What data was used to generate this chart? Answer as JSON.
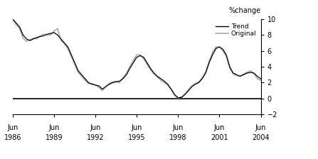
{
  "title": "%change",
  "xlim_start": 1986.417,
  "xlim_end": 2004.417,
  "ylim": [
    -2,
    10
  ],
  "yticks": [
    -2,
    0,
    2,
    4,
    6,
    8,
    10
  ],
  "xtick_positions": [
    1986.417,
    1989.417,
    1992.417,
    1995.417,
    1998.417,
    2001.417,
    2004.417
  ],
  "xtick_labels_top": [
    "Jun",
    "Jun",
    "Jun",
    "Jun",
    "Jun",
    "Jun",
    "Jun"
  ],
  "xtick_labels_bot": [
    "1986",
    "1989",
    "1992",
    "1995",
    "1998",
    "2001",
    "2004"
  ],
  "trend_color": "#000000",
  "original_color": "#aaaaaa",
  "zero_line_color": "#000000",
  "legend_entries": [
    "Trend",
    "Original"
  ],
  "background_color": "#ffffff",
  "trend_data": [
    [
      1986.417,
      10.0
    ],
    [
      1986.67,
      9.5
    ],
    [
      1986.917,
      9.0
    ],
    [
      1987.167,
      8.0
    ],
    [
      1987.417,
      7.5
    ],
    [
      1987.67,
      7.3
    ],
    [
      1987.917,
      7.5
    ],
    [
      1988.167,
      7.7
    ],
    [
      1988.417,
      7.8
    ],
    [
      1988.67,
      7.9
    ],
    [
      1988.917,
      8.1
    ],
    [
      1989.167,
      8.2
    ],
    [
      1989.417,
      8.3
    ],
    [
      1989.67,
      8.0
    ],
    [
      1989.917,
      7.5
    ],
    [
      1990.167,
      7.0
    ],
    [
      1990.417,
      6.5
    ],
    [
      1990.67,
      5.5
    ],
    [
      1990.917,
      4.5
    ],
    [
      1991.167,
      3.5
    ],
    [
      1991.417,
      3.0
    ],
    [
      1991.67,
      2.5
    ],
    [
      1991.917,
      2.0
    ],
    [
      1992.167,
      1.8
    ],
    [
      1992.417,
      1.7
    ],
    [
      1992.67,
      1.6
    ],
    [
      1992.917,
      1.2
    ],
    [
      1993.167,
      1.5
    ],
    [
      1993.417,
      1.8
    ],
    [
      1993.67,
      2.0
    ],
    [
      1993.917,
      2.1
    ],
    [
      1994.167,
      2.2
    ],
    [
      1994.417,
      2.5
    ],
    [
      1994.67,
      3.0
    ],
    [
      1994.917,
      3.8
    ],
    [
      1995.167,
      4.5
    ],
    [
      1995.417,
      5.2
    ],
    [
      1995.67,
      5.4
    ],
    [
      1995.917,
      5.2
    ],
    [
      1996.167,
      4.5
    ],
    [
      1996.417,
      3.8
    ],
    [
      1996.67,
      3.2
    ],
    [
      1996.917,
      2.8
    ],
    [
      1997.167,
      2.5
    ],
    [
      1997.417,
      2.2
    ],
    [
      1997.67,
      1.8
    ],
    [
      1997.917,
      1.2
    ],
    [
      1998.167,
      0.5
    ],
    [
      1998.417,
      0.1
    ],
    [
      1998.67,
      0.15
    ],
    [
      1998.917,
      0.5
    ],
    [
      1999.167,
      1.0
    ],
    [
      1999.417,
      1.5
    ],
    [
      1999.67,
      1.8
    ],
    [
      1999.917,
      2.0
    ],
    [
      2000.167,
      2.5
    ],
    [
      2000.417,
      3.2
    ],
    [
      2000.67,
      4.5
    ],
    [
      2000.917,
      5.5
    ],
    [
      2001.167,
      6.3
    ],
    [
      2001.417,
      6.5
    ],
    [
      2001.67,
      6.2
    ],
    [
      2001.917,
      5.5
    ],
    [
      2002.167,
      4.0
    ],
    [
      2002.417,
      3.2
    ],
    [
      2002.67,
      3.0
    ],
    [
      2002.917,
      2.8
    ],
    [
      2003.167,
      3.0
    ],
    [
      2003.417,
      3.2
    ],
    [
      2003.67,
      3.3
    ],
    [
      2003.917,
      3.2
    ],
    [
      2004.167,
      2.8
    ],
    [
      2004.417,
      2.5
    ]
  ],
  "original_data": [
    [
      1986.417,
      10.0
    ],
    [
      1986.67,
      9.3
    ],
    [
      1986.917,
      8.8
    ],
    [
      1987.167,
      7.6
    ],
    [
      1987.417,
      7.2
    ],
    [
      1987.67,
      7.4
    ],
    [
      1987.917,
      7.6
    ],
    [
      1988.167,
      7.5
    ],
    [
      1988.417,
      7.9
    ],
    [
      1988.67,
      8.1
    ],
    [
      1988.917,
      8.0
    ],
    [
      1989.167,
      8.0
    ],
    [
      1989.417,
      8.5
    ],
    [
      1989.67,
      8.8
    ],
    [
      1989.917,
      7.3
    ],
    [
      1990.167,
      6.9
    ],
    [
      1990.417,
      6.3
    ],
    [
      1990.67,
      5.3
    ],
    [
      1990.917,
      4.3
    ],
    [
      1991.167,
      3.3
    ],
    [
      1991.417,
      2.8
    ],
    [
      1991.67,
      2.3
    ],
    [
      1991.917,
      1.9
    ],
    [
      1992.167,
      1.9
    ],
    [
      1992.417,
      1.7
    ],
    [
      1992.67,
      1.4
    ],
    [
      1992.917,
      1.0
    ],
    [
      1993.167,
      1.5
    ],
    [
      1993.417,
      1.9
    ],
    [
      1993.67,
      2.1
    ],
    [
      1993.917,
      2.2
    ],
    [
      1994.167,
      2.0
    ],
    [
      1994.417,
      2.6
    ],
    [
      1994.67,
      3.2
    ],
    [
      1994.917,
      4.0
    ],
    [
      1995.167,
      4.8
    ],
    [
      1995.417,
      5.5
    ],
    [
      1995.67,
      5.5
    ],
    [
      1995.917,
      5.0
    ],
    [
      1996.167,
      4.3
    ],
    [
      1996.417,
      3.6
    ],
    [
      1996.67,
      3.1
    ],
    [
      1996.917,
      2.7
    ],
    [
      1997.167,
      2.3
    ],
    [
      1997.417,
      2.0
    ],
    [
      1997.67,
      1.7
    ],
    [
      1997.917,
      1.1
    ],
    [
      1998.167,
      0.4
    ],
    [
      1998.417,
      0.05
    ],
    [
      1998.67,
      0.2
    ],
    [
      1998.917,
      0.6
    ],
    [
      1999.167,
      1.1
    ],
    [
      1999.417,
      1.6
    ],
    [
      1999.67,
      1.9
    ],
    [
      1999.917,
      2.1
    ],
    [
      2000.167,
      2.6
    ],
    [
      2000.417,
      3.4
    ],
    [
      2000.67,
      4.7
    ],
    [
      2000.917,
      5.8
    ],
    [
      2001.167,
      6.5
    ],
    [
      2001.417,
      6.5
    ],
    [
      2001.67,
      6.0
    ],
    [
      2001.917,
      5.3
    ],
    [
      2002.167,
      3.8
    ],
    [
      2002.417,
      3.1
    ],
    [
      2002.67,
      2.9
    ],
    [
      2002.917,
      2.8
    ],
    [
      2003.167,
      3.1
    ],
    [
      2003.417,
      3.3
    ],
    [
      2003.67,
      3.5
    ],
    [
      2003.917,
      3.2
    ],
    [
      2004.167,
      2.5
    ],
    [
      2004.417,
      2.3
    ]
  ]
}
